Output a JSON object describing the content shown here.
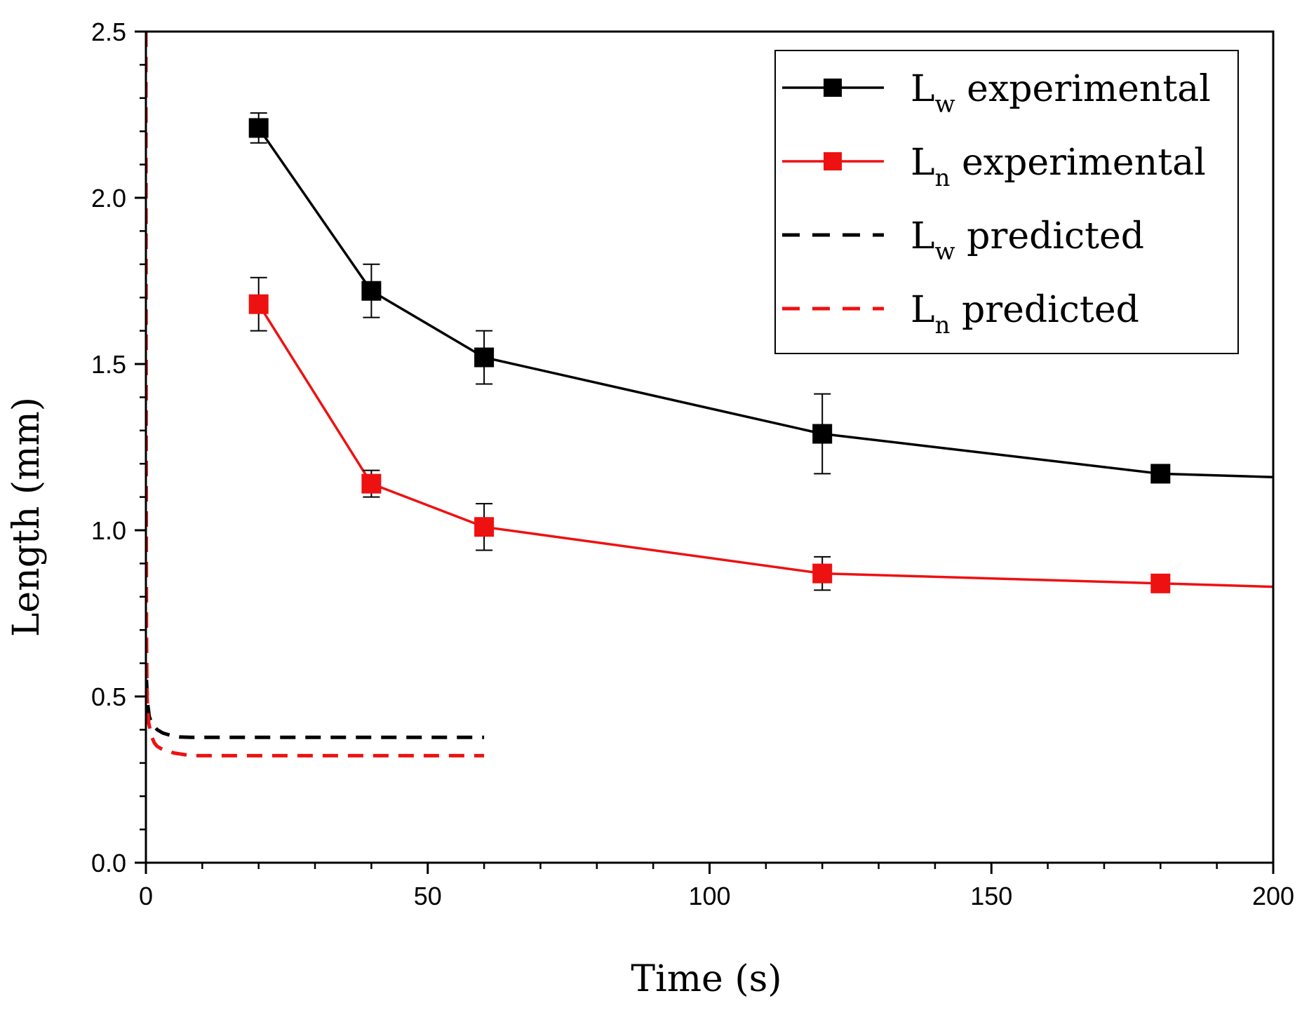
{
  "chart_data": {
    "type": "line",
    "xlabel": "Time (s)",
    "ylabel": "Length (mm)",
    "xlim": [
      0,
      200
    ],
    "ylim": [
      0,
      2.5
    ],
    "xticks": [
      0,
      50,
      100,
      150,
      200
    ],
    "xtick_labels": [
      "0",
      "50",
      "100",
      "150",
      "200"
    ],
    "yticks": [
      0,
      0.5,
      1.0,
      1.5,
      2.0,
      2.5
    ],
    "ytick_labels": [
      "0.0",
      "0.5",
      "1.0",
      "1.5",
      "2.0",
      "2.5"
    ],
    "grid": false,
    "legend_position": "top-right",
    "series": [
      {
        "name": "Lw experimental",
        "legend": {
          "main": "L",
          "sub": "w",
          "rest": " experimental"
        },
        "style": "solid-marker",
        "color": "#000000",
        "x": [
          20,
          40,
          60,
          120,
          180
        ],
        "values": [
          2.21,
          1.72,
          1.52,
          1.29,
          1.17
        ],
        "errors": [
          0.045,
          0.08,
          0.08,
          0.12,
          0.02
        ],
        "tail": {
          "x": 200,
          "y": 1.16
        }
      },
      {
        "name": "Ln experimental",
        "legend": {
          "main": "L",
          "sub": "n",
          "rest": " experimental"
        },
        "style": "solid-marker",
        "color": "#ee1111",
        "x": [
          20,
          40,
          60,
          120,
          180
        ],
        "values": [
          1.68,
          1.14,
          1.01,
          0.87,
          0.84
        ],
        "errors": [
          0.08,
          0.04,
          0.07,
          0.05,
          0.01
        ],
        "tail": {
          "x": 200,
          "y": 0.83
        }
      },
      {
        "name": "Lw predicted",
        "legend": {
          "main": "L",
          "sub": "w",
          "rest": " predicted"
        },
        "style": "dashed",
        "color": "#000000",
        "x": [
          0.1,
          0.3,
          0.6,
          1.0,
          1.5,
          2.0,
          3.0,
          4.0,
          5.0,
          6.0,
          8.0,
          20,
          40,
          60
        ],
        "values": [
          0.55,
          0.48,
          0.44,
          0.42,
          0.41,
          0.4,
          0.39,
          0.385,
          0.38,
          0.378,
          0.377,
          0.377,
          0.377,
          0.377
        ]
      },
      {
        "name": "Ln predicted",
        "legend": {
          "main": "L",
          "sub": "n",
          "rest": " predicted"
        },
        "style": "dashed",
        "color": "#ee1111",
        "x": [
          0.0,
          0.05,
          0.1,
          0.2,
          0.5,
          1.0,
          1.5,
          2.0,
          3.0,
          4.0,
          5.0,
          8.0,
          20,
          40,
          60
        ],
        "values": [
          2.5,
          1.2,
          0.7,
          0.5,
          0.42,
          0.38,
          0.36,
          0.35,
          0.34,
          0.335,
          0.33,
          0.322,
          0.322,
          0.322,
          0.322
        ]
      }
    ]
  }
}
